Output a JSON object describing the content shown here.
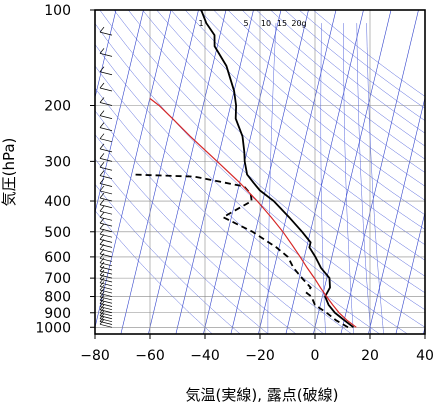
{
  "chart_data": {
    "type": "line",
    "subtype": "skew-t-log-p",
    "xlabel": "気温(実線), 露点(破線)",
    "ylabel": "気圧(hPa)",
    "xlim": [
      -80,
      40
    ],
    "ylim": [
      1050,
      100
    ],
    "y_scale": "log",
    "grid": true,
    "x_ticks": [
      "−80",
      "−60",
      "−40",
      "−20",
      "0",
      "20",
      "40"
    ],
    "x_tick_values": [
      -80,
      -60,
      -40,
      -20,
      0,
      20,
      40
    ],
    "y_ticks": [
      "100",
      "200",
      "300",
      "400",
      "500",
      "600",
      "700",
      "800",
      "900",
      "1000"
    ],
    "y_tick_values": [
      100,
      200,
      300,
      400,
      500,
      600,
      700,
      800,
      900,
      1000
    ],
    "mixing_ratio_labels": [
      "1",
      "5",
      "10",
      "15",
      "20g"
    ],
    "mixing_ratio_values": [
      1,
      5,
      10,
      15,
      20
    ],
    "series": [
      {
        "style": "solid",
        "color": "#000000",
        "points": [
          {
            "p": 1000,
            "t": 14
          },
          {
            "p": 950,
            "t": 10
          },
          {
            "p": 925,
            "t": 8
          },
          {
            "p": 900,
            "t": 6
          },
          {
            "p": 850,
            "t": 3
          },
          {
            "p": 800,
            "t": 1
          },
          {
            "p": 750,
            "t": 2
          },
          {
            "p": 700,
            "t": 1
          },
          {
            "p": 650,
            "t": -3
          },
          {
            "p": 600,
            "t": -6
          },
          {
            "p": 560,
            "t": -9
          },
          {
            "p": 540,
            "t": -9
          },
          {
            "p": 500,
            "t": -13
          },
          {
            "p": 450,
            "t": -19
          },
          {
            "p": 400,
            "t": -26
          },
          {
            "p": 370,
            "t": -32
          },
          {
            "p": 350,
            "t": -35
          },
          {
            "p": 330,
            "t": -38
          },
          {
            "p": 300,
            "t": -40
          },
          {
            "p": 280,
            "t": -41
          },
          {
            "p": 250,
            "t": -43
          },
          {
            "p": 220,
            "t": -47
          },
          {
            "p": 200,
            "t": -48
          },
          {
            "p": 180,
            "t": -50
          },
          {
            "p": 150,
            "t": -55
          },
          {
            "p": 130,
            "t": -61
          },
          {
            "p": 120,
            "t": -62
          },
          {
            "p": 110,
            "t": -66
          },
          {
            "p": 100,
            "t": -69
          }
        ]
      },
      {
        "style": "dashed",
        "color": "#000000",
        "points": [
          {
            "p": 1000,
            "t": 12
          },
          {
            "p": 950,
            "t": 7
          },
          {
            "p": 925,
            "t": 5
          },
          {
            "p": 900,
            "t": 3
          },
          {
            "p": 850,
            "t": -2
          },
          {
            "p": 800,
            "t": -4
          },
          {
            "p": 780,
            "t": -6
          },
          {
            "p": 750,
            "t": -5
          },
          {
            "p": 700,
            "t": -9
          },
          {
            "p": 650,
            "t": -13
          },
          {
            "p": 600,
            "t": -16
          },
          {
            "p": 560,
            "t": -21
          },
          {
            "p": 500,
            "t": -31
          },
          {
            "p": 450,
            "t": -43
          },
          {
            "p": 400,
            "t": -34
          },
          {
            "p": 380,
            "t": -35
          },
          {
            "p": 360,
            "t": -38
          },
          {
            "p": 335,
            "t": -57
          },
          {
            "p": 330,
            "t": -80
          }
        ]
      },
      {
        "style": "solid",
        "color": "#d62828",
        "points": [
          {
            "p": 1000,
            "t": 15
          },
          {
            "p": 950,
            "t": 11
          },
          {
            "p": 900,
            "t": 7.5
          },
          {
            "p": 850,
            "t": 4.5
          },
          {
            "p": 800,
            "t": 1.5
          },
          {
            "p": 750,
            "t": -1.5
          },
          {
            "p": 700,
            "t": -4.5
          },
          {
            "p": 650,
            "t": -8
          },
          {
            "p": 600,
            "t": -11.5
          },
          {
            "p": 550,
            "t": -15.5
          },
          {
            "p": 500,
            "t": -20
          },
          {
            "p": 450,
            "t": -25.5
          },
          {
            "p": 400,
            "t": -32
          },
          {
            "p": 350,
            "t": -40
          },
          {
            "p": 300,
            "t": -50
          },
          {
            "p": 250,
            "t": -62
          },
          {
            "p": 220,
            "t": -70
          },
          {
            "p": 200,
            "t": -76
          },
          {
            "p": 190,
            "t": -80
          }
        ]
      }
    ]
  }
}
